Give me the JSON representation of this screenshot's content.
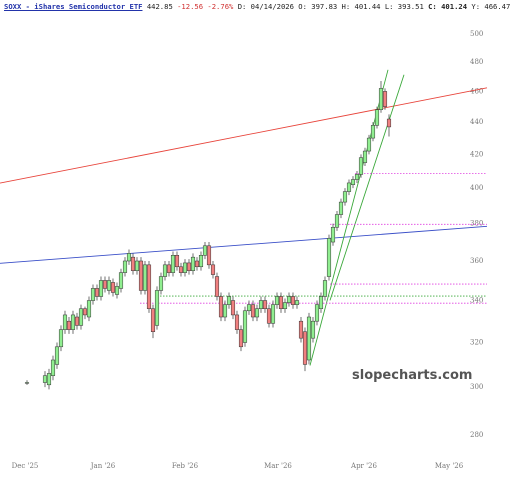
{
  "chart_data": {
    "type": "candlestick",
    "header": {
      "symbol": "SOXX - iShares Semiconductor ETF",
      "last": "442.85",
      "change": "-12.56 -2.76%",
      "details": "D: 04/14/2026 O: 397.83 H: 401.44 L: 393.51",
      "close": "C: 401.24",
      "extra": "Y: 466.47"
    },
    "watermark": "slopecharts.com",
    "log_scale": true,
    "ylim": [
      270,
      525
    ],
    "yticks": [
      280,
      300,
      320,
      340,
      360,
      380,
      400,
      420,
      440,
      460,
      480,
      500
    ],
    "xlim": [
      -11.25,
      110.5
    ],
    "xticks": [
      {
        "value": -5,
        "label": "Dec '25"
      },
      {
        "value": 14.5,
        "label": "Jan '26"
      },
      {
        "value": 35,
        "label": "Feb '26"
      },
      {
        "value": 58.25,
        "label": "Mar '26"
      },
      {
        "value": 79.75,
        "label": "Apr '26"
      },
      {
        "value": 101,
        "label": "May '26"
      }
    ],
    "up_color": "#90ee90",
    "down_color": "#f08080",
    "x": [
      -4.5,
      0,
      1,
      2,
      3,
      4,
      5,
      6,
      7,
      8,
      9,
      10,
      11,
      12,
      13,
      14,
      15,
      16,
      17,
      18,
      19,
      20,
      21,
      22,
      23,
      24,
      25,
      26,
      27,
      28,
      29,
      30,
      31,
      32,
      33,
      34,
      35,
      36,
      37,
      38,
      39,
      40,
      41,
      42,
      43,
      44,
      45,
      46,
      47,
      48,
      49,
      50,
      51,
      52,
      53,
      54,
      55,
      56,
      57,
      58,
      59,
      60,
      61,
      62,
      63,
      64,
      65,
      66,
      67,
      68,
      69,
      70,
      71,
      72,
      73,
      74,
      75,
      76,
      77,
      78,
      79,
      80,
      81,
      82,
      83,
      84,
      85,
      86
    ],
    "open": [
      302,
      302,
      301,
      305,
      310,
      318,
      326,
      330,
      326,
      332,
      328,
      336,
      332,
      340,
      346,
      342,
      350,
      345,
      349,
      343,
      346,
      354,
      360,
      362,
      355,
      360,
      345,
      358,
      336,
      328,
      345,
      352,
      358,
      354,
      363,
      357,
      354,
      359,
      355,
      360,
      357,
      363,
      368,
      358,
      352,
      342,
      332,
      338,
      340,
      333,
      326,
      320,
      335,
      338,
      332,
      336,
      340,
      336,
      329,
      338,
      342,
      336,
      339,
      342,
      338,
      330,
      325,
      312,
      322,
      330,
      336,
      342,
      352,
      370,
      378,
      385,
      392,
      398,
      402,
      405,
      408,
      415,
      422,
      430,
      438,
      448,
      460,
      442
    ],
    "high": [
      303,
      307,
      308,
      314,
      320,
      328,
      335,
      332,
      335,
      334,
      338,
      337,
      342,
      348,
      348,
      352,
      352,
      352,
      351,
      349,
      356,
      362,
      366,
      364,
      362,
      362,
      360,
      360,
      338,
      347,
      354,
      360,
      360,
      365,
      365,
      359,
      361,
      361,
      364,
      362,
      365,
      370,
      370,
      360,
      354,
      344,
      340,
      344,
      342,
      335,
      328,
      337,
      340,
      340,
      338,
      342,
      342,
      338,
      340,
      344,
      344,
      341,
      344,
      344,
      342,
      332,
      327,
      334,
      332,
      340,
      344,
      352,
      374,
      380,
      387,
      394,
      400,
      405,
      407,
      410,
      420,
      424,
      432,
      440,
      450,
      467,
      462,
      445
    ],
    "low": [
      301,
      300,
      299,
      303,
      308,
      316,
      324,
      324,
      324,
      326,
      326,
      331,
      330,
      338,
      340,
      340,
      344,
      343,
      342,
      341,
      344,
      352,
      358,
      353,
      353,
      343,
      343,
      334,
      322,
      326,
      343,
      350,
      352,
      352,
      355,
      352,
      352,
      353,
      353,
      355,
      355,
      361,
      356,
      351,
      340,
      330,
      330,
      336,
      331,
      324,
      316,
      318,
      333,
      330,
      330,
      334,
      334,
      327,
      327,
      336,
      334,
      334,
      337,
      336,
      336,
      320,
      307,
      310,
      320,
      328,
      334,
      340,
      350,
      368,
      376,
      383,
      390,
      396,
      400,
      403,
      406,
      413,
      420,
      428,
      436,
      446,
      448,
      431
    ],
    "close": [
      302,
      305,
      306,
      312,
      318,
      326,
      333,
      326,
      333,
      328,
      336,
      333,
      340,
      346,
      342,
      350,
      346,
      350,
      344,
      347,
      354,
      360,
      364,
      355,
      360,
      345,
      358,
      336,
      325,
      345,
      352,
      358,
      354,
      363,
      357,
      354,
      359,
      355,
      362,
      357,
      363,
      368,
      358,
      353,
      342,
      332,
      338,
      342,
      333,
      326,
      318,
      335,
      338,
      332,
      336,
      340,
      336,
      329,
      338,
      342,
      336,
      339,
      342,
      338,
      340,
      322,
      310,
      332,
      330,
      338,
      342,
      350,
      372,
      378,
      385,
      392,
      398,
      403,
      405,
      408,
      418,
      422,
      430,
      438,
      448,
      462,
      450,
      437
    ],
    "trendlines": [
      {
        "color": "#e8453c",
        "x": [
          -11.25,
          110.5
        ],
        "y": [
          402.9,
          462.4
        ]
      },
      {
        "color": "#3a4fc8",
        "x": [
          -11.25,
          110.5
        ],
        "y": [
          358.8,
          378.5
        ]
      },
      {
        "color": "#3aa83a",
        "x": [
          66.25,
          85.75
        ],
        "y": [
          309.5,
          474.6
        ]
      },
      {
        "color": "#3aa83a",
        "x": [
          71.25,
          89.75
        ],
        "y": [
          340.1,
          471.2
        ]
      }
    ],
    "levels": [
      {
        "color": "#e040e0",
        "value": 408.6,
        "x_start": 77.5
      },
      {
        "color": "#e040e0",
        "value": 379.6,
        "x_start": 71.25
      },
      {
        "color": "#e040e0",
        "value": 348.2,
        "x_start": 71.25
      },
      {
        "color": "#3aa83a",
        "value": 342.2,
        "x_start": 28.75
      },
      {
        "color": "#e040e0",
        "value": 338.7,
        "x_start": 23.75
      }
    ]
  }
}
